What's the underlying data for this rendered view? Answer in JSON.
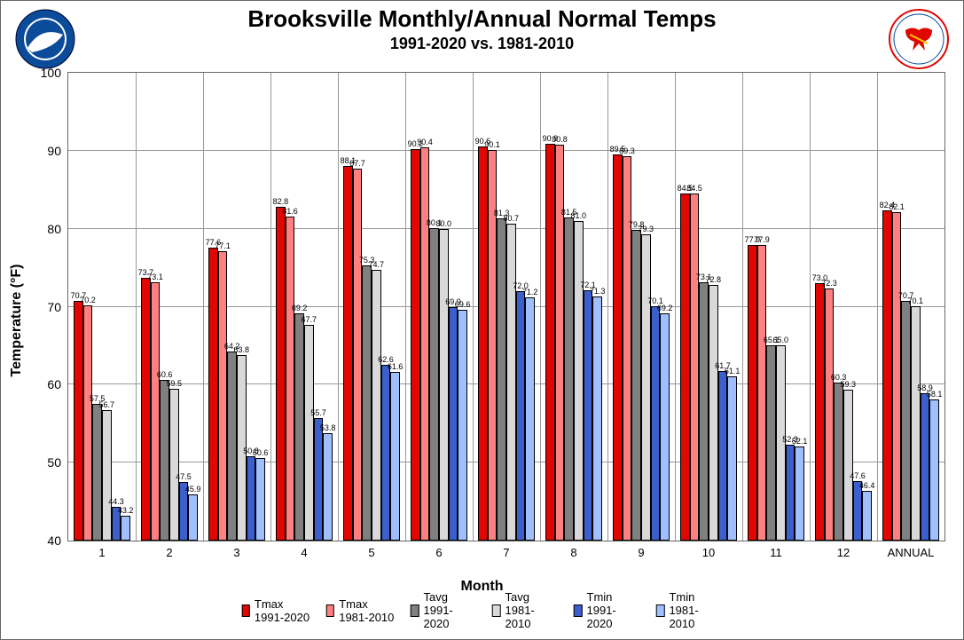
{
  "title": "Brooksville Monthly/Annual Normal Temps",
  "subtitle": "1991-2020 vs. 1981-2010",
  "y_axis_label": "Temperature (°F)",
  "x_axis_label": "Month",
  "chart": {
    "type": "bar",
    "ylim": [
      40,
      100
    ],
    "ytick_step": 10,
    "yticks": [
      40,
      50,
      60,
      70,
      80,
      90,
      100
    ],
    "categories": [
      "1",
      "2",
      "3",
      "4",
      "5",
      "6",
      "7",
      "8",
      "9",
      "10",
      "11",
      "12",
      "ANNUAL"
    ],
    "series": [
      {
        "name": "Tmax 1991-2020",
        "color": "#e10600",
        "values": [
          70.7,
          73.7,
          77.6,
          82.8,
          88.1,
          90.2,
          90.6,
          90.9,
          89.5,
          84.5,
          77.9,
          73.0,
          82.4
        ]
      },
      {
        "name": "Tmax 1981-2010",
        "color": "#ff8080",
        "values": [
          70.2,
          73.1,
          77.1,
          81.6,
          87.7,
          90.4,
          90.1,
          90.8,
          89.3,
          84.5,
          77.9,
          72.3,
          82.1
        ]
      },
      {
        "name": "Tavg 1991-2020",
        "color": "#808080",
        "values": [
          57.5,
          60.6,
          64.2,
          69.2,
          75.3,
          80.1,
          81.3,
          81.5,
          79.8,
          73.1,
          65.1,
          60.3,
          70.7
        ]
      },
      {
        "name": "Tavg 1981-2010",
        "color": "#d9d9d9",
        "values": [
          56.7,
          59.5,
          63.8,
          67.7,
          74.7,
          80.0,
          80.7,
          81.0,
          79.3,
          72.8,
          65.0,
          59.3,
          70.1
        ]
      },
      {
        "name": "Tmin 1991-2020",
        "color": "#3b5fcc",
        "values": [
          44.3,
          47.5,
          50.8,
          55.7,
          62.6,
          69.9,
          72.0,
          72.1,
          70.1,
          61.7,
          52.3,
          47.6,
          58.9
        ]
      },
      {
        "name": "Tmin 1981-2010",
        "color": "#9fbfff",
        "values": [
          43.2,
          45.9,
          50.6,
          53.8,
          61.6,
          69.6,
          71.2,
          71.3,
          69.2,
          61.1,
          52.1,
          46.4,
          58.1
        ]
      }
    ],
    "background_color": "#ffffff",
    "grid_color": "#999999",
    "border_color": "#666666",
    "bar_border_color": "#000000",
    "label_fontsize": 9,
    "axis_fontsize": 14,
    "title_fontsize": 26,
    "subtitle_fontsize": 18
  },
  "legend_labels": {
    "s0": "Tmax 1991-2020",
    "s1": "Tmax 1981-2010",
    "s2": "Tavg 1991-2020",
    "s3": "Tavg 1981-2010",
    "s4": "Tmin 1991-2020",
    "s5": "Tmin 1981-2010"
  }
}
